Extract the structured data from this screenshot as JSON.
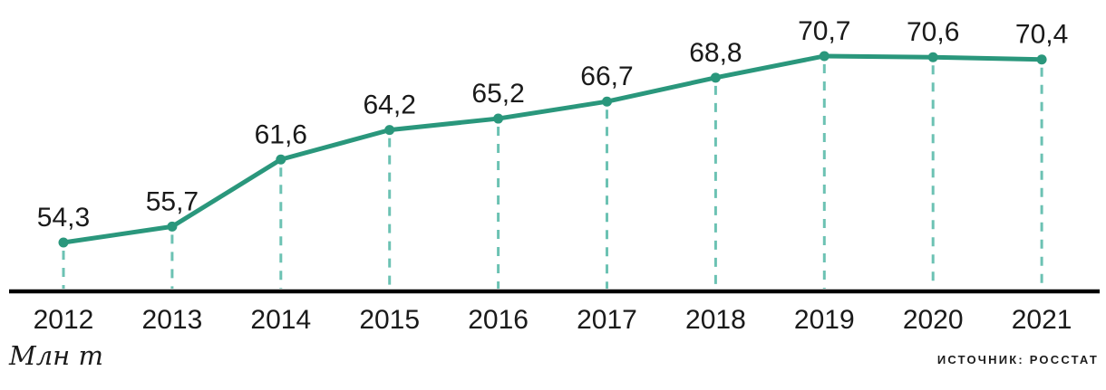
{
  "chart_data": {
    "type": "line",
    "title": "",
    "categories": [
      "2012",
      "2013",
      "2014",
      "2015",
      "2016",
      "2017",
      "2018",
      "2019",
      "2020",
      "2021"
    ],
    "values": [
      54.3,
      55.7,
      61.6,
      64.2,
      65.2,
      66.7,
      68.8,
      70.7,
      70.6,
      70.4
    ],
    "value_labels": [
      "54,3",
      "55,7",
      "61,6",
      "64,2",
      "65,2",
      "66,7",
      "68,8",
      "70,7",
      "70,6",
      "70,4"
    ],
    "xlabel": "",
    "ylabel": "Млн т",
    "ylim": [
      50,
      74
    ],
    "grid": false,
    "legend": "none",
    "colors": {
      "line": "#2a977c",
      "marker": "#2a977c",
      "dropline": "#6cc2b3",
      "axis": "#000000",
      "text": "#1a1a1a"
    }
  },
  "footer": {
    "unit_label": "Млн т",
    "source_label": "ИСТОЧНИК: РОССТАТ"
  }
}
